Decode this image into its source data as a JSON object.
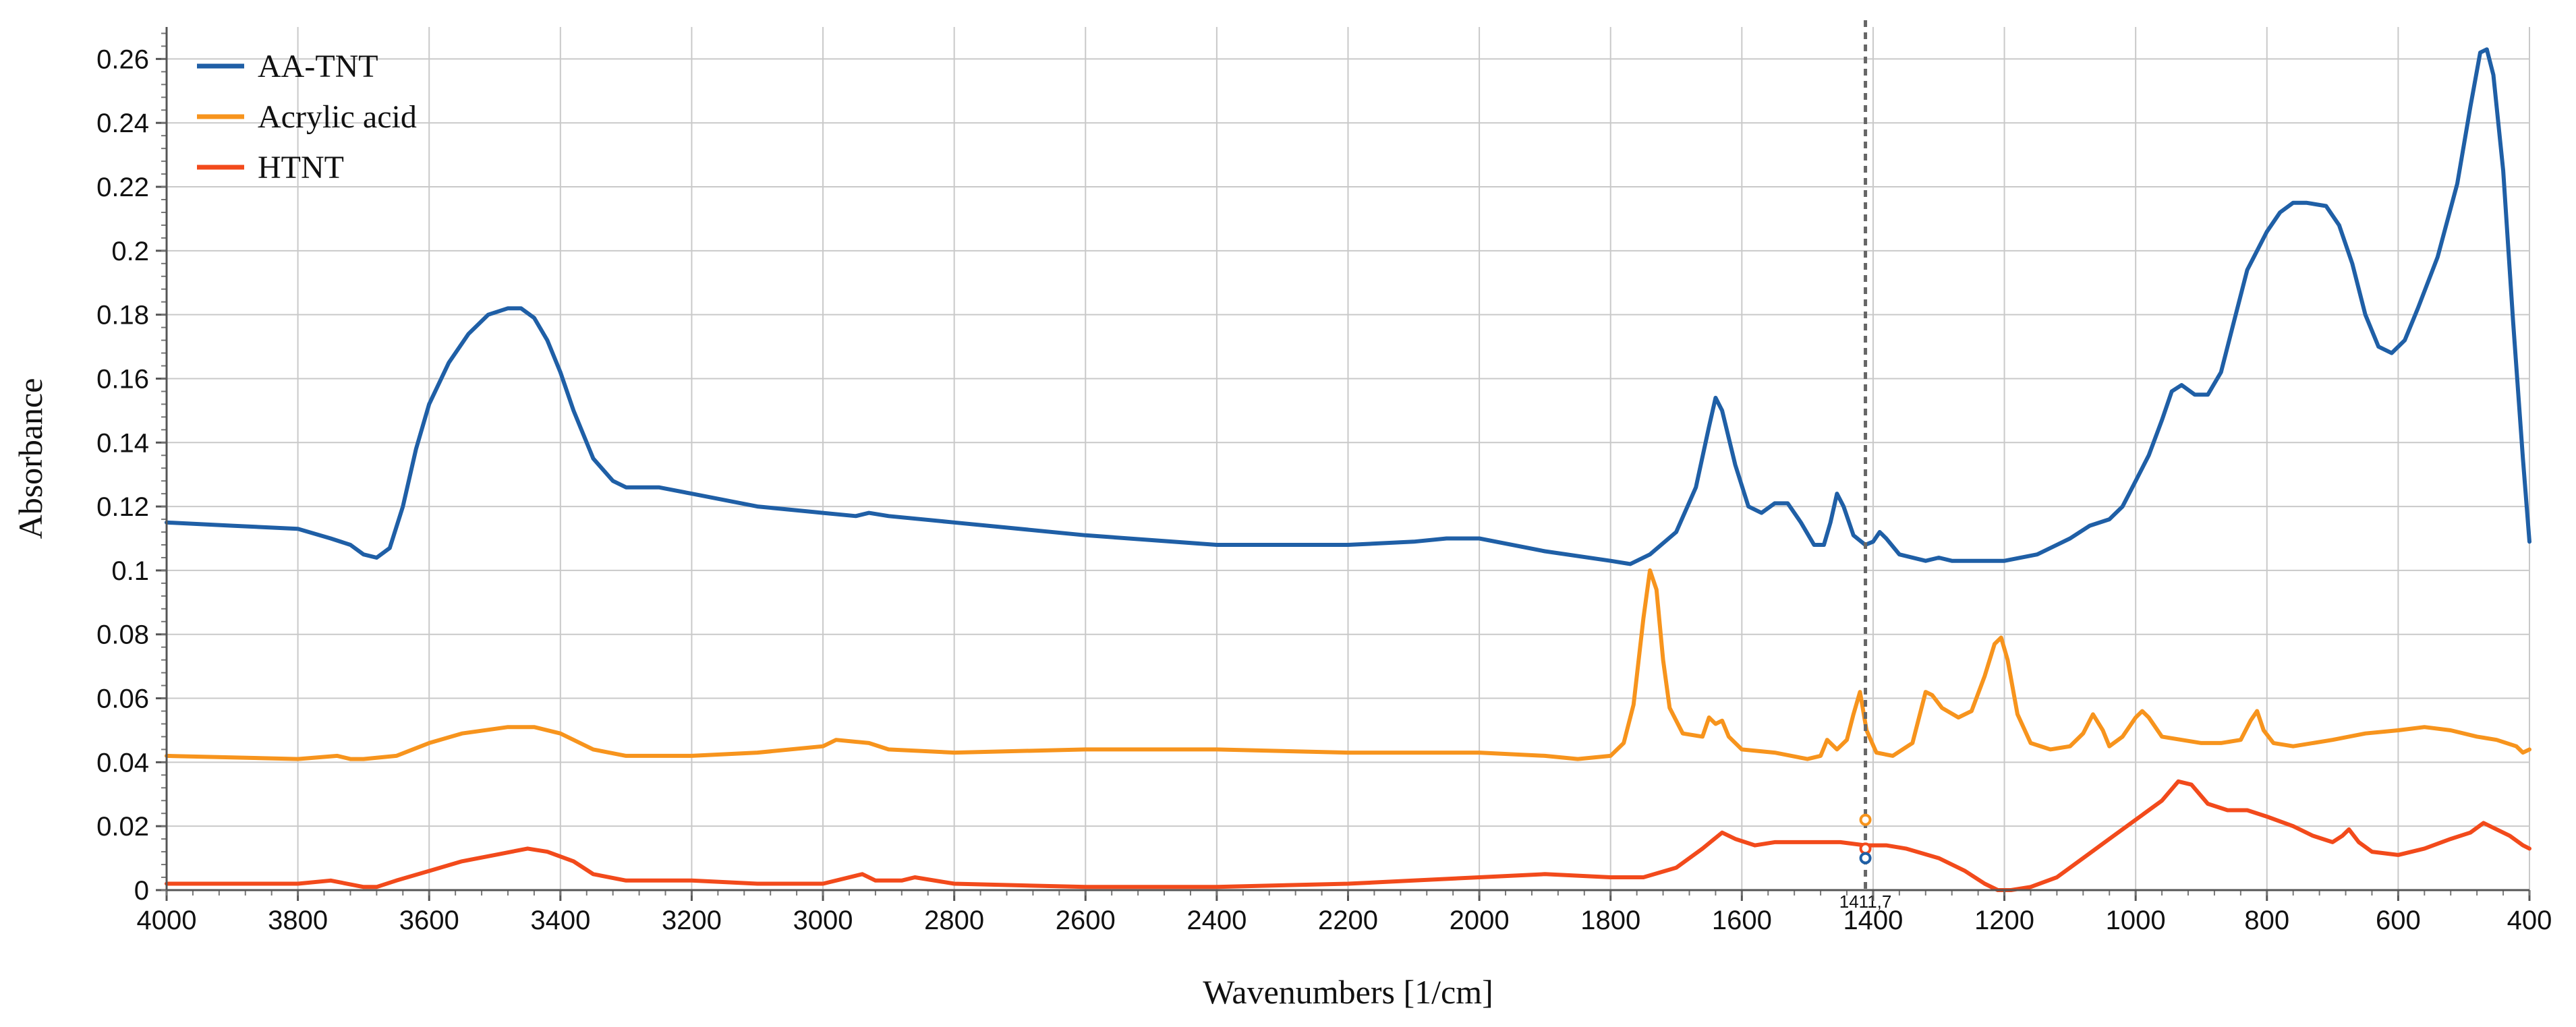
{
  "chart_data": {
    "type": "line",
    "xlabel": "Wavenumbers [1/cm]",
    "ylabel": "Absorbance",
    "xlim": [
      4000,
      400
    ],
    "ylim": [
      0,
      0.27
    ],
    "x_reversed": true,
    "grid": true,
    "legend_position": "top-left",
    "x_ticks": [
      4000,
      3800,
      3600,
      3400,
      3200,
      3000,
      2800,
      2600,
      2400,
      2200,
      2000,
      1800,
      1600,
      1400,
      1200,
      1000,
      800,
      600,
      400
    ],
    "y_ticks": [
      0,
      0.02,
      0.04,
      0.06,
      0.08,
      0.1,
      0.12,
      0.14,
      0.16,
      0.18,
      0.2,
      0.22,
      0.24,
      0.26
    ],
    "cursor": {
      "x": 1411.7,
      "label": "1411,7"
    },
    "series": [
      {
        "name": "AA-TNT",
        "color": "#1f5fa6",
        "points": [
          [
            4000,
            0.115
          ],
          [
            3900,
            0.114
          ],
          [
            3800,
            0.113
          ],
          [
            3750,
            0.11
          ],
          [
            3720,
            0.108
          ],
          [
            3700,
            0.105
          ],
          [
            3680,
            0.104
          ],
          [
            3660,
            0.107
          ],
          [
            3640,
            0.12
          ],
          [
            3620,
            0.138
          ],
          [
            3600,
            0.152
          ],
          [
            3570,
            0.165
          ],
          [
            3540,
            0.174
          ],
          [
            3510,
            0.18
          ],
          [
            3480,
            0.182
          ],
          [
            3460,
            0.182
          ],
          [
            3440,
            0.179
          ],
          [
            3420,
            0.172
          ],
          [
            3400,
            0.162
          ],
          [
            3380,
            0.15
          ],
          [
            3350,
            0.135
          ],
          [
            3320,
            0.128
          ],
          [
            3300,
            0.126
          ],
          [
            3250,
            0.126
          ],
          [
            3200,
            0.124
          ],
          [
            3100,
            0.12
          ],
          [
            3000,
            0.118
          ],
          [
            2950,
            0.117
          ],
          [
            2930,
            0.118
          ],
          [
            2900,
            0.117
          ],
          [
            2800,
            0.115
          ],
          [
            2600,
            0.111
          ],
          [
            2400,
            0.108
          ],
          [
            2200,
            0.108
          ],
          [
            2100,
            0.109
          ],
          [
            2050,
            0.11
          ],
          [
            2000,
            0.11
          ],
          [
            1900,
            0.106
          ],
          [
            1800,
            0.103
          ],
          [
            1770,
            0.102
          ],
          [
            1740,
            0.105
          ],
          [
            1700,
            0.112
          ],
          [
            1670,
            0.126
          ],
          [
            1650,
            0.145
          ],
          [
            1640,
            0.154
          ],
          [
            1630,
            0.15
          ],
          [
            1610,
            0.133
          ],
          [
            1590,
            0.12
          ],
          [
            1570,
            0.118
          ],
          [
            1550,
            0.121
          ],
          [
            1530,
            0.121
          ],
          [
            1510,
            0.115
          ],
          [
            1490,
            0.108
          ],
          [
            1475,
            0.108
          ],
          [
            1465,
            0.115
          ],
          [
            1455,
            0.124
          ],
          [
            1445,
            0.12
          ],
          [
            1430,
            0.111
          ],
          [
            1412,
            0.108
          ],
          [
            1400,
            0.109
          ],
          [
            1390,
            0.112
          ],
          [
            1380,
            0.11
          ],
          [
            1360,
            0.105
          ],
          [
            1320,
            0.103
          ],
          [
            1300,
            0.104
          ],
          [
            1280,
            0.103
          ],
          [
            1250,
            0.103
          ],
          [
            1200,
            0.103
          ],
          [
            1150,
            0.105
          ],
          [
            1100,
            0.11
          ],
          [
            1070,
            0.114
          ],
          [
            1040,
            0.116
          ],
          [
            1020,
            0.12
          ],
          [
            1000,
            0.128
          ],
          [
            980,
            0.136
          ],
          [
            960,
            0.147
          ],
          [
            945,
            0.156
          ],
          [
            930,
            0.158
          ],
          [
            910,
            0.155
          ],
          [
            890,
            0.155
          ],
          [
            870,
            0.162
          ],
          [
            850,
            0.178
          ],
          [
            830,
            0.194
          ],
          [
            800,
            0.206
          ],
          [
            780,
            0.212
          ],
          [
            760,
            0.215
          ],
          [
            740,
            0.215
          ],
          [
            710,
            0.214
          ],
          [
            690,
            0.208
          ],
          [
            670,
            0.196
          ],
          [
            650,
            0.18
          ],
          [
            630,
            0.17
          ],
          [
            610,
            0.168
          ],
          [
            590,
            0.172
          ],
          [
            570,
            0.182
          ],
          [
            540,
            0.198
          ],
          [
            510,
            0.221
          ],
          [
            490,
            0.245
          ],
          [
            475,
            0.262
          ],
          [
            465,
            0.263
          ],
          [
            455,
            0.255
          ],
          [
            440,
            0.225
          ],
          [
            425,
            0.178
          ],
          [
            410,
            0.135
          ],
          [
            400,
            0.109
          ]
        ]
      },
      {
        "name": "Acrylic acid",
        "color": "#f7941d",
        "points": [
          [
            4000,
            0.042
          ],
          [
            3800,
            0.041
          ],
          [
            3740,
            0.042
          ],
          [
            3720,
            0.041
          ],
          [
            3700,
            0.041
          ],
          [
            3650,
            0.042
          ],
          [
            3600,
            0.046
          ],
          [
            3550,
            0.049
          ],
          [
            3480,
            0.051
          ],
          [
            3440,
            0.051
          ],
          [
            3400,
            0.049
          ],
          [
            3350,
            0.044
          ],
          [
            3300,
            0.042
          ],
          [
            3200,
            0.042
          ],
          [
            3100,
            0.043
          ],
          [
            3000,
            0.045
          ],
          [
            2980,
            0.047
          ],
          [
            2930,
            0.046
          ],
          [
            2900,
            0.044
          ],
          [
            2800,
            0.043
          ],
          [
            2600,
            0.044
          ],
          [
            2400,
            0.044
          ],
          [
            2200,
            0.043
          ],
          [
            2000,
            0.043
          ],
          [
            1900,
            0.042
          ],
          [
            1850,
            0.041
          ],
          [
            1800,
            0.042
          ],
          [
            1780,
            0.046
          ],
          [
            1765,
            0.058
          ],
          [
            1750,
            0.085
          ],
          [
            1740,
            0.1
          ],
          [
            1730,
            0.094
          ],
          [
            1720,
            0.072
          ],
          [
            1710,
            0.057
          ],
          [
            1690,
            0.049
          ],
          [
            1660,
            0.048
          ],
          [
            1650,
            0.054
          ],
          [
            1640,
            0.052
          ],
          [
            1630,
            0.053
          ],
          [
            1620,
            0.048
          ],
          [
            1600,
            0.044
          ],
          [
            1550,
            0.043
          ],
          [
            1500,
            0.041
          ],
          [
            1480,
            0.042
          ],
          [
            1470,
            0.047
          ],
          [
            1455,
            0.044
          ],
          [
            1440,
            0.047
          ],
          [
            1430,
            0.055
          ],
          [
            1420,
            0.062
          ],
          [
            1410,
            0.05
          ],
          [
            1395,
            0.043
          ],
          [
            1370,
            0.042
          ],
          [
            1340,
            0.046
          ],
          [
            1320,
            0.062
          ],
          [
            1310,
            0.061
          ],
          [
            1295,
            0.057
          ],
          [
            1270,
            0.054
          ],
          [
            1250,
            0.056
          ],
          [
            1230,
            0.067
          ],
          [
            1215,
            0.077
          ],
          [
            1205,
            0.079
          ],
          [
            1195,
            0.072
          ],
          [
            1180,
            0.055
          ],
          [
            1160,
            0.046
          ],
          [
            1130,
            0.044
          ],
          [
            1100,
            0.045
          ],
          [
            1080,
            0.049
          ],
          [
            1065,
            0.055
          ],
          [
            1050,
            0.05
          ],
          [
            1040,
            0.045
          ],
          [
            1020,
            0.048
          ],
          [
            1000,
            0.054
          ],
          [
            990,
            0.056
          ],
          [
            980,
            0.054
          ],
          [
            960,
            0.048
          ],
          [
            930,
            0.047
          ],
          [
            900,
            0.046
          ],
          [
            870,
            0.046
          ],
          [
            840,
            0.047
          ],
          [
            825,
            0.053
          ],
          [
            815,
            0.056
          ],
          [
            805,
            0.05
          ],
          [
            790,
            0.046
          ],
          [
            760,
            0.045
          ],
          [
            700,
            0.047
          ],
          [
            650,
            0.049
          ],
          [
            600,
            0.05
          ],
          [
            560,
            0.051
          ],
          [
            520,
            0.05
          ],
          [
            480,
            0.048
          ],
          [
            450,
            0.047
          ],
          [
            420,
            0.045
          ],
          [
            410,
            0.043
          ],
          [
            400,
            0.044
          ]
        ]
      },
      {
        "name": "HTNT",
        "color": "#f24a1b",
        "points": [
          [
            4000,
            0.002
          ],
          [
            3800,
            0.002
          ],
          [
            3750,
            0.003
          ],
          [
            3700,
            0.001
          ],
          [
            3680,
            0.001
          ],
          [
            3650,
            0.003
          ],
          [
            3600,
            0.006
          ],
          [
            3550,
            0.009
          ],
          [
            3500,
            0.011
          ],
          [
            3450,
            0.013
          ],
          [
            3420,
            0.012
          ],
          [
            3380,
            0.009
          ],
          [
            3350,
            0.005
          ],
          [
            3300,
            0.003
          ],
          [
            3200,
            0.003
          ],
          [
            3100,
            0.002
          ],
          [
            3000,
            0.002
          ],
          [
            2940,
            0.005
          ],
          [
            2920,
            0.003
          ],
          [
            2880,
            0.003
          ],
          [
            2860,
            0.004
          ],
          [
            2800,
            0.002
          ],
          [
            2600,
            0.001
          ],
          [
            2400,
            0.001
          ],
          [
            2200,
            0.002
          ],
          [
            2100,
            0.003
          ],
          [
            2000,
            0.004
          ],
          [
            1900,
            0.005
          ],
          [
            1800,
            0.004
          ],
          [
            1750,
            0.004
          ],
          [
            1700,
            0.007
          ],
          [
            1660,
            0.013
          ],
          [
            1630,
            0.018
          ],
          [
            1610,
            0.016
          ],
          [
            1580,
            0.014
          ],
          [
            1550,
            0.015
          ],
          [
            1500,
            0.015
          ],
          [
            1450,
            0.015
          ],
          [
            1412,
            0.014
          ],
          [
            1380,
            0.014
          ],
          [
            1350,
            0.013
          ],
          [
            1300,
            0.01
          ],
          [
            1260,
            0.006
          ],
          [
            1230,
            0.002
          ],
          [
            1210,
            0.0
          ],
          [
            1190,
            0.0
          ],
          [
            1160,
            0.001
          ],
          [
            1120,
            0.004
          ],
          [
            1080,
            0.01
          ],
          [
            1040,
            0.016
          ],
          [
            1000,
            0.022
          ],
          [
            960,
            0.028
          ],
          [
            935,
            0.034
          ],
          [
            915,
            0.033
          ],
          [
            890,
            0.027
          ],
          [
            860,
            0.025
          ],
          [
            830,
            0.025
          ],
          [
            800,
            0.023
          ],
          [
            760,
            0.02
          ],
          [
            730,
            0.017
          ],
          [
            700,
            0.015
          ],
          [
            685,
            0.017
          ],
          [
            675,
            0.019
          ],
          [
            660,
            0.015
          ],
          [
            640,
            0.012
          ],
          [
            600,
            0.011
          ],
          [
            560,
            0.013
          ],
          [
            520,
            0.016
          ],
          [
            490,
            0.018
          ],
          [
            470,
            0.021
          ],
          [
            450,
            0.019
          ],
          [
            430,
            0.017
          ],
          [
            410,
            0.014
          ],
          [
            400,
            0.013
          ]
        ]
      }
    ]
  }
}
